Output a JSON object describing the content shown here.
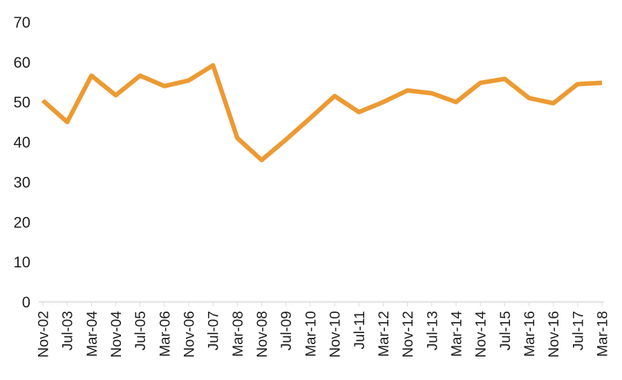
{
  "chart_data": {
    "type": "line",
    "title": "",
    "xlabel": "",
    "ylabel": "",
    "categories": [
      "Nov-02",
      "Jul-03",
      "Mar-04",
      "Nov-04",
      "Jul-05",
      "Mar-06",
      "Nov-06",
      "Jul-07",
      "Mar-08",
      "Nov-08",
      "Jul-09",
      "Mar-10",
      "Nov-10",
      "Jul-11",
      "Mar-12",
      "Nov-12",
      "Jul-13",
      "Mar-14",
      "Nov-14",
      "Jul-15",
      "Mar-16",
      "Nov-16",
      "Jul-17",
      "Mar-18"
    ],
    "series": [
      {
        "name": "value",
        "values": [
          50.4,
          45.0,
          56.6,
          51.7,
          56.6,
          54.0,
          55.4,
          59.2,
          41.0,
          35.5,
          40.6,
          46.0,
          51.5,
          47.5,
          50.0,
          52.9,
          52.2,
          50.0,
          54.8,
          55.8,
          51.0,
          49.7,
          54.5,
          54.8
        ]
      }
    ],
    "yticks": [
      0,
      10,
      20,
      30,
      40,
      50,
      60,
      70
    ],
    "ylim": [
      0,
      70
    ],
    "grid": false,
    "legend": false,
    "colors": {
      "line": "#EC9A33",
      "axis": "#D9D9D9",
      "text": "#1F1F1F",
      "background": "#FFFFFF"
    }
  }
}
